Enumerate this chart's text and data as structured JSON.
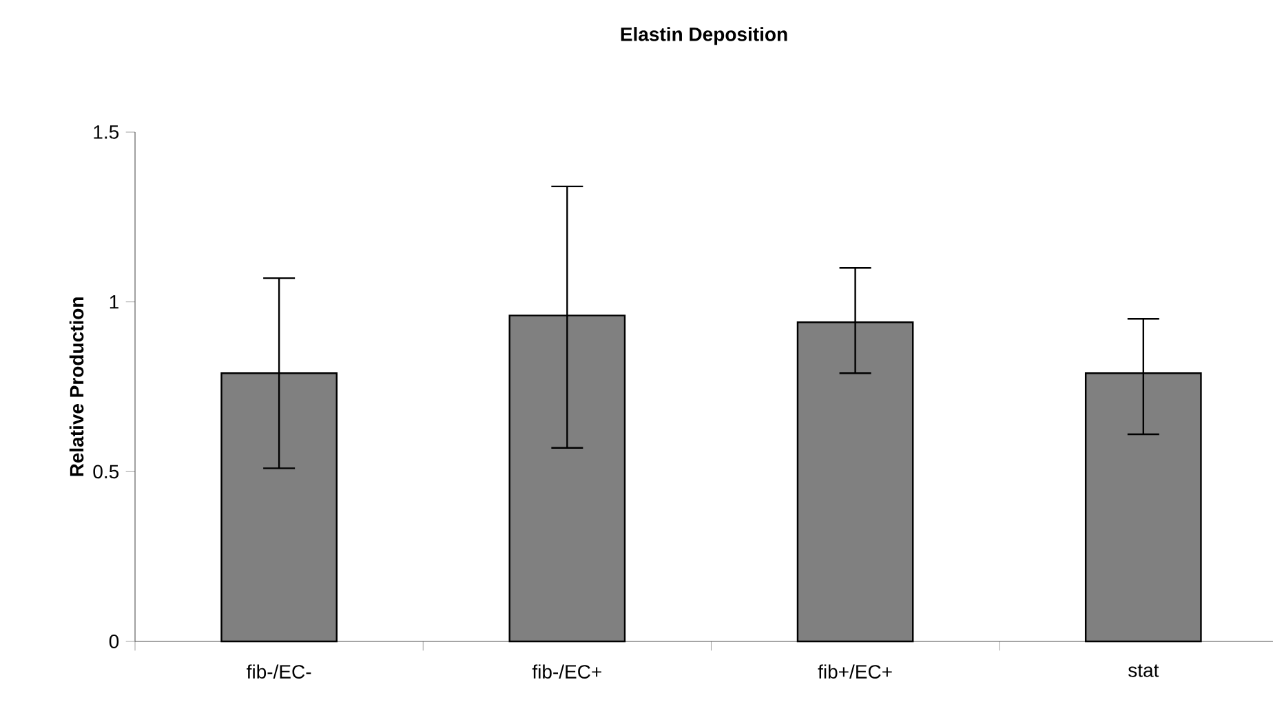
{
  "chart_data": {
    "type": "bar",
    "title": "Elastin Deposition",
    "ylabel": "Relative Production",
    "categories": [
      "fib-/EC-",
      "fib-/EC+",
      "fib+/EC+",
      "stat"
    ],
    "values": [
      0.79,
      0.96,
      0.94,
      0.79
    ],
    "errors": [
      [
        0.51,
        1.07
      ],
      [
        0.57,
        1.34
      ],
      [
        0.79,
        1.1
      ],
      [
        0.61,
        0.95
      ]
    ],
    "color": "#808080",
    "ylim": [
      0,
      1.5
    ],
    "yticks": [
      0,
      0.5,
      1,
      1.5
    ],
    "grid": false
  }
}
